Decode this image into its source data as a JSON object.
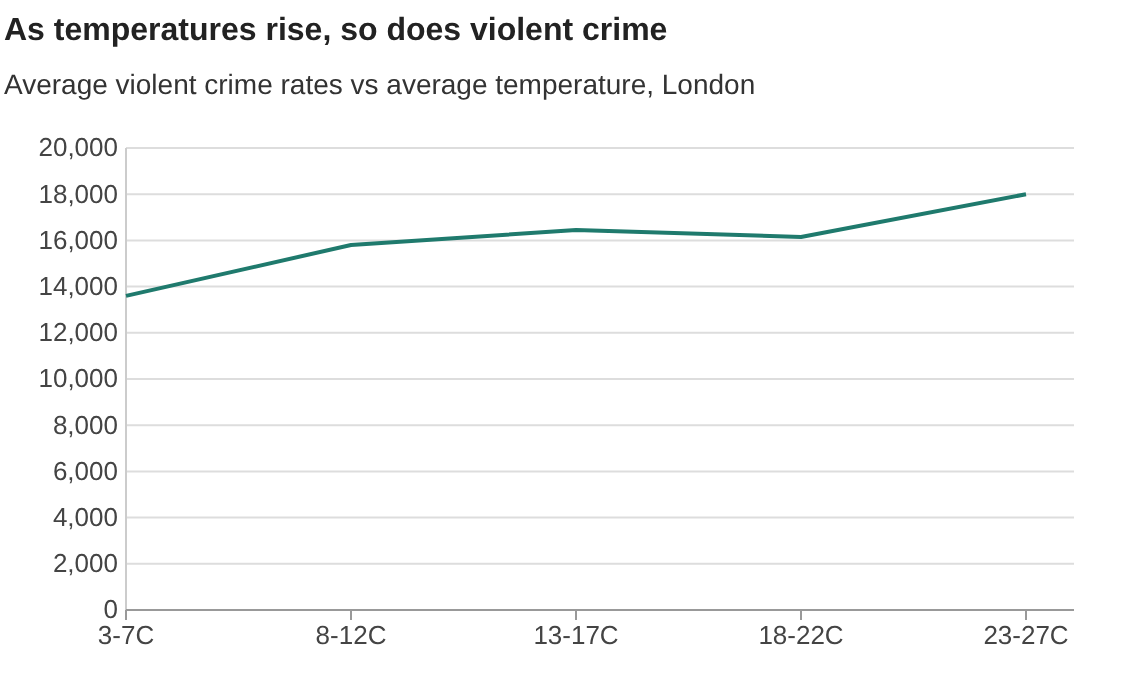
{
  "chart_data": {
    "type": "line",
    "title": "As temperatures rise, so does violent crime",
    "subtitle": "Average violent crime rates vs average temperature, London",
    "categories": [
      "3-7C",
      "8-12C",
      "13-17C",
      "18-22C",
      "23-27C"
    ],
    "series": [
      {
        "color": "#1f7a6d",
        "values": [
          13600,
          15800,
          16450,
          16150,
          18000
        ]
      }
    ],
    "ylim": [
      0,
      20000
    ],
    "yticks": [
      {
        "value": 0,
        "label": "0"
      },
      {
        "value": 2000,
        "label": "2,000"
      },
      {
        "value": 4000,
        "label": "4,000"
      },
      {
        "value": 6000,
        "label": "6,000"
      },
      {
        "value": 8000,
        "label": "8,000"
      },
      {
        "value": 10000,
        "label": "10,000"
      },
      {
        "value": 12000,
        "label": "12,000"
      },
      {
        "value": 14000,
        "label": "14,000"
      },
      {
        "value": 16000,
        "label": "16,000"
      },
      {
        "value": 18000,
        "label": "18,000"
      },
      {
        "value": 20000,
        "label": "20,000"
      }
    ],
    "grid": "y",
    "marker": "none",
    "line_style": "solid"
  }
}
